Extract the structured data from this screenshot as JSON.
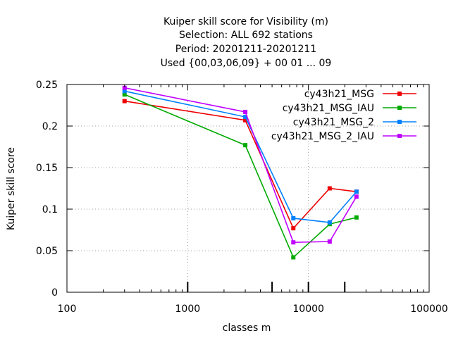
{
  "chart_data": {
    "type": "line",
    "title_lines": [
      "Kuiper skill score  for Visibility (m)",
      "Selection: ALL    692 stations",
      "Period: 20201211-20201211",
      "Used {00,03,06,09} + 00 01 ... 09"
    ],
    "xlabel": "classes m",
    "ylabel": "Kuiper skill score",
    "x_scale": "log",
    "xlim": [
      100,
      100000
    ],
    "ylim": [
      0,
      0.25
    ],
    "x_ticks": [
      100,
      1000,
      10000,
      100000
    ],
    "x_tick_labels": [
      "100",
      "1000",
      "10000",
      "100000"
    ],
    "y_ticks": [
      0,
      0.05,
      0.1,
      0.15,
      0.2,
      0.25
    ],
    "y_tick_labels": [
      "0",
      "0.05",
      "0.1",
      "0.15",
      "0.2",
      "0.25"
    ],
    "grid": true,
    "legend_position": "top-right",
    "class_markers": [
      1000,
      5000,
      10000,
      20000
    ],
    "x": [
      300,
      3000,
      7500,
      15000,
      25000
    ],
    "series": [
      {
        "name": "cy43h21_MSG",
        "color": "#ee0000",
        "values": [
          0.23,
          0.207,
          0.077,
          0.125,
          0.121
        ]
      },
      {
        "name": "cy43h21_MSG_IAU",
        "color": "#00aa00",
        "values": [
          0.238,
          0.177,
          0.042,
          0.082,
          0.09
        ]
      },
      {
        "name": "cy43h21_MSG_2",
        "color": "#0080ff",
        "values": [
          0.242,
          0.211,
          0.089,
          0.084,
          0.121
        ]
      },
      {
        "name": "cy43h21_MSG_2_IAU",
        "color": "#c000ff",
        "values": [
          0.246,
          0.217,
          0.06,
          0.061,
          0.115
        ]
      }
    ]
  }
}
